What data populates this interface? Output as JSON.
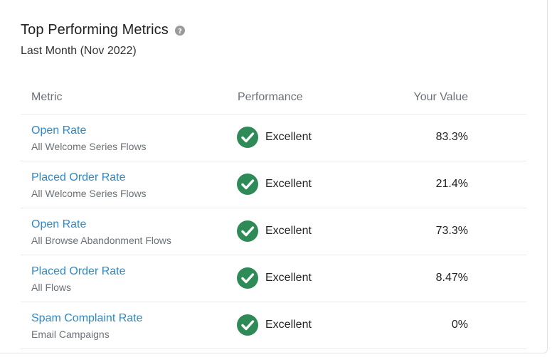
{
  "card": {
    "title": "Top Performing Metrics",
    "help_icon": "question-circle-icon",
    "subtitle": "Last Month (Nov 2022)"
  },
  "table": {
    "headers": {
      "metric": "Metric",
      "performance": "Performance",
      "value": "Your Value"
    },
    "rows": [
      {
        "metric": "Open Rate",
        "scope": "All Welcome Series Flows",
        "performance": "Excellent",
        "value": "83.3%"
      },
      {
        "metric": "Placed Order Rate",
        "scope": "All Welcome Series Flows",
        "performance": "Excellent",
        "value": "21.4%"
      },
      {
        "metric": "Open Rate",
        "scope": "All Browse Abandonment Flows",
        "performance": "Excellent",
        "value": "73.3%"
      },
      {
        "metric": "Placed Order Rate",
        "scope": "All Flows",
        "performance": "Excellent",
        "value": "8.47%"
      },
      {
        "metric": "Spam Complaint Rate",
        "scope": "Email Campaigns",
        "performance": "Excellent",
        "value": "0%"
      }
    ]
  },
  "colors": {
    "link": "#2d8ac7",
    "excellent": "#2e8b57",
    "muted": "#6b7177",
    "text": "#222222"
  }
}
